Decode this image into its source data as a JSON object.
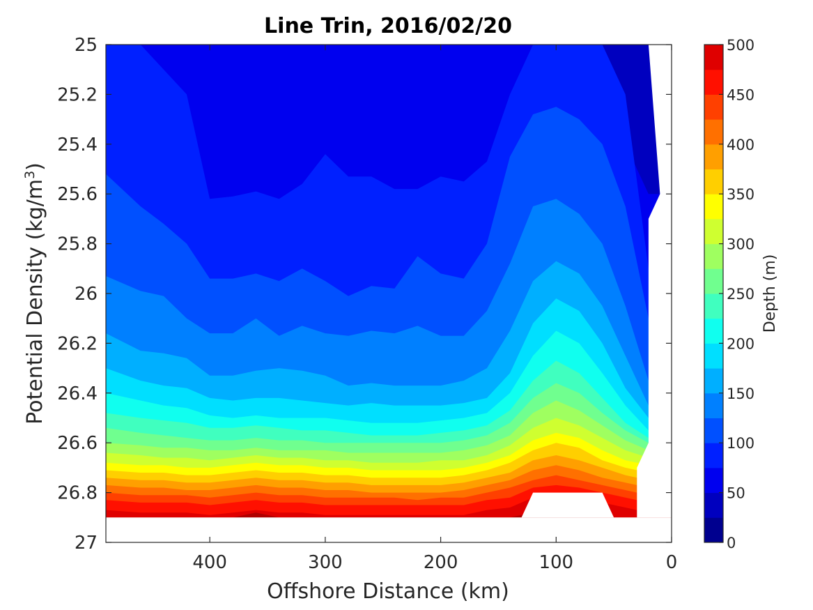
{
  "chart_data": {
    "type": "heatmap",
    "title": "Line Trin, 2016/02/20",
    "xlabel": "Offshore Distance (km)",
    "ylabel": "Potential Density (kg/m",
    "ylabel_sup": "3",
    "ylabel_end": ")",
    "xlim": [
      490,
      0
    ],
    "x_reversed": true,
    "ylim": [
      25,
      27
    ],
    "y_reversed": true,
    "x_ticks": [
      400,
      300,
      200,
      100,
      0
    ],
    "x_tick_labels": [
      "400",
      "300",
      "200",
      "100",
      "0"
    ],
    "y_ticks": [
      25,
      25.2,
      25.4,
      25.6,
      25.8,
      26,
      26.2,
      26.4,
      26.6,
      26.8,
      27
    ],
    "y_tick_labels": [
      "25",
      "25.2",
      "25.4",
      "25.6",
      "25.8",
      "26",
      "26.2",
      "26.4",
      "26.6",
      "26.8",
      "27"
    ],
    "colorbar": {
      "label": "Depth (m)",
      "range": [
        0,
        500
      ],
      "step": 25,
      "ticks": [
        0,
        50,
        100,
        150,
        200,
        250,
        300,
        350,
        400,
        450,
        500
      ],
      "tick_labels": [
        "0",
        "50",
        "100",
        "150",
        "200",
        "250",
        "300",
        "350",
        "400",
        "450",
        "500"
      ],
      "colors": [
        "#00008f",
        "#0000bf",
        "#0000ef",
        "#0020ff",
        "#0050ff",
        "#0080ff",
        "#00afff",
        "#00dfff",
        "#10ffef",
        "#40ffbf",
        "#70ff8f",
        "#9fff60",
        "#cfff30",
        "#ffff00",
        "#ffcf00",
        "#ff9f00",
        "#ff7000",
        "#ff4000",
        "#ff1000",
        "#df0000",
        "#af0000"
      ]
    },
    "x_grid": [
      490,
      460,
      440,
      420,
      400,
      380,
      360,
      340,
      320,
      300,
      280,
      260,
      240,
      220,
      200,
      180,
      160,
      140,
      120,
      100,
      80,
      60,
      40,
      20
    ],
    "depth_isopycnals": [
      {
        "depth": 25,
        "density": [
          25.0,
          25.0,
          25.0,
          25.0,
          25.0,
          25.0,
          25.0,
          25.1,
          25.0,
          25.0,
          25.0,
          25.0,
          25.0,
          25.0,
          25.0,
          25.0,
          25.0,
          25.0,
          25.0,
          25.0,
          25.0,
          25.0,
          25.0,
          25.0
        ]
      },
      {
        "depth": 50,
        "density": [
          25.0,
          25.0,
          25.0,
          25.0,
          25.0,
          25.0,
          25.0,
          25.0,
          25.0,
          25.0,
          25.0,
          25.0,
          25.0,
          25.0,
          25.0,
          25.0,
          25.0,
          25.0,
          25.0,
          25.0,
          25.0,
          25.0,
          25.4,
          25.6
        ]
      },
      {
        "depth": 75,
        "density": [
          25.0,
          25.0,
          25.1,
          25.2,
          25.62,
          25.61,
          25.59,
          25.62,
          25.56,
          25.44,
          25.53,
          25.53,
          25.58,
          25.58,
          25.53,
          25.55,
          25.47,
          25.2,
          25.0,
          25.0,
          25.0,
          25.0,
          25.2,
          25.9
        ]
      },
      {
        "depth": 100,
        "density": [
          25.52,
          25.65,
          25.72,
          25.8,
          25.94,
          25.94,
          25.92,
          25.95,
          25.9,
          25.95,
          26.01,
          25.97,
          25.98,
          25.85,
          25.92,
          25.94,
          25.8,
          25.45,
          25.28,
          25.25,
          25.3,
          25.4,
          25.65,
          26.1
        ]
      },
      {
        "depth": 125,
        "density": [
          25.93,
          25.99,
          26.01,
          26.1,
          26.16,
          26.16,
          26.1,
          26.17,
          26.13,
          26.16,
          26.17,
          26.15,
          26.16,
          26.13,
          26.17,
          26.17,
          26.07,
          25.88,
          25.65,
          25.62,
          25.68,
          25.8,
          26.05,
          26.35
        ]
      },
      {
        "depth": 150,
        "density": [
          26.16,
          26.23,
          26.24,
          26.26,
          26.33,
          26.33,
          26.31,
          26.3,
          26.31,
          26.33,
          26.37,
          26.36,
          26.37,
          26.37,
          26.37,
          26.35,
          26.3,
          26.15,
          25.95,
          25.87,
          25.92,
          26.05,
          26.25,
          26.45
        ]
      },
      {
        "depth": 175,
        "density": [
          26.3,
          26.35,
          26.37,
          26.38,
          26.42,
          26.43,
          26.42,
          26.42,
          26.43,
          26.44,
          26.45,
          26.44,
          26.45,
          26.45,
          26.45,
          26.44,
          26.42,
          26.32,
          26.12,
          26.02,
          26.07,
          26.2,
          26.38,
          26.5
        ]
      },
      {
        "depth": 200,
        "density": [
          26.4,
          26.43,
          26.45,
          26.46,
          26.49,
          26.5,
          26.49,
          26.5,
          26.5,
          26.5,
          26.51,
          26.52,
          26.52,
          26.52,
          26.51,
          26.5,
          26.48,
          26.4,
          26.25,
          26.15,
          26.2,
          26.32,
          26.45,
          26.55
        ]
      },
      {
        "depth": 225,
        "density": [
          26.48,
          26.5,
          26.51,
          26.52,
          26.54,
          26.54,
          26.53,
          26.54,
          26.55,
          26.55,
          26.56,
          26.57,
          26.57,
          26.57,
          26.56,
          26.55,
          26.53,
          26.47,
          26.35,
          26.27,
          26.32,
          26.42,
          26.52,
          26.58
        ]
      },
      {
        "depth": 250,
        "density": [
          26.54,
          26.56,
          26.57,
          26.58,
          26.59,
          26.59,
          26.58,
          26.59,
          26.59,
          26.6,
          26.6,
          26.6,
          26.6,
          26.6,
          26.6,
          26.59,
          26.57,
          26.52,
          26.42,
          26.36,
          26.4,
          26.48,
          26.55,
          26.6
        ]
      },
      {
        "depth": 275,
        "density": [
          26.6,
          26.61,
          26.62,
          26.62,
          26.63,
          26.63,
          26.62,
          26.63,
          26.63,
          26.63,
          26.64,
          26.64,
          26.64,
          26.64,
          26.64,
          26.63,
          26.61,
          26.57,
          26.48,
          26.43,
          26.47,
          26.53,
          26.59,
          26.63
        ]
      },
      {
        "depth": 300,
        "density": [
          26.64,
          26.65,
          26.66,
          26.66,
          26.67,
          26.66,
          26.65,
          26.66,
          26.66,
          26.67,
          26.67,
          26.68,
          26.68,
          26.68,
          26.67,
          26.67,
          26.65,
          26.61,
          26.54,
          26.5,
          26.53,
          26.58,
          26.63,
          26.66
        ]
      },
      {
        "depth": 325,
        "density": [
          26.68,
          26.69,
          26.69,
          26.7,
          26.7,
          26.69,
          26.68,
          26.69,
          26.69,
          26.7,
          26.7,
          26.71,
          26.71,
          26.71,
          26.71,
          26.7,
          26.68,
          26.65,
          26.59,
          26.56,
          26.58,
          26.63,
          26.67,
          26.69
        ]
      },
      {
        "depth": 350,
        "density": [
          26.71,
          26.72,
          26.72,
          26.73,
          26.73,
          26.72,
          26.71,
          26.72,
          26.72,
          26.73,
          26.73,
          26.74,
          26.74,
          26.74,
          26.74,
          26.73,
          26.71,
          26.68,
          26.63,
          26.6,
          26.62,
          26.67,
          26.7,
          26.72
        ]
      },
      {
        "depth": 375,
        "density": [
          26.74,
          26.75,
          26.75,
          26.76,
          26.76,
          26.75,
          26.74,
          26.75,
          26.75,
          26.76,
          26.76,
          26.77,
          26.77,
          26.77,
          26.77,
          26.76,
          26.74,
          26.72,
          26.67,
          26.65,
          26.67,
          26.7,
          26.73,
          26.75
        ]
      },
      {
        "depth": 400,
        "density": [
          26.77,
          26.78,
          26.78,
          26.79,
          26.79,
          26.78,
          26.77,
          26.78,
          26.78,
          26.79,
          26.79,
          26.8,
          26.8,
          26.8,
          26.8,
          26.79,
          26.77,
          26.75,
          26.71,
          26.69,
          26.71,
          26.74,
          26.76,
          26.78
        ]
      },
      {
        "depth": 425,
        "density": [
          26.8,
          26.81,
          26.81,
          26.81,
          26.82,
          26.81,
          26.8,
          26.81,
          26.81,
          26.82,
          26.82,
          26.82,
          26.82,
          26.83,
          26.82,
          26.82,
          26.8,
          26.78,
          26.75,
          26.73,
          26.75,
          26.77,
          26.79,
          26.81
        ]
      },
      {
        "depth": 450,
        "density": [
          26.83,
          26.84,
          26.84,
          26.84,
          26.85,
          26.84,
          26.83,
          26.84,
          26.84,
          26.85,
          26.85,
          26.85,
          26.85,
          26.85,
          26.85,
          26.85,
          26.83,
          26.82,
          26.78,
          26.77,
          26.78,
          26.8,
          26.82,
          26.84
        ]
      },
      {
        "depth": 475,
        "density": [
          26.87,
          26.88,
          26.88,
          26.88,
          26.89,
          26.88,
          26.87,
          26.88,
          26.88,
          26.89,
          26.89,
          26.89,
          26.89,
          26.89,
          26.89,
          26.89,
          26.87,
          26.86,
          26.82,
          26.81,
          26.82,
          26.84,
          26.86,
          26.88
        ]
      },
      {
        "depth": 500,
        "density": [
          26.9,
          26.9,
          26.9,
          26.9,
          26.9,
          26.9,
          26.88,
          26.9,
          26.9,
          26.9,
          26.9,
          26.9,
          26.9,
          26.9,
          26.9,
          26.9,
          26.9,
          26.9,
          26.88,
          26.87,
          26.88,
          26.9,
          26.9,
          26.9
        ]
      }
    ],
    "blank_regions": [
      {
        "name": "region-below-data",
        "points": [
          [
            490,
            26.9
          ],
          [
            0,
            26.9
          ],
          [
            0,
            27
          ],
          [
            490,
            27
          ]
        ]
      },
      {
        "name": "coastal-no-data",
        "points": [
          [
            20,
            25.0
          ],
          [
            0,
            25.0
          ],
          [
            0,
            26.9
          ],
          [
            30,
            26.9
          ],
          [
            30,
            26.7
          ],
          [
            20,
            26.6
          ],
          [
            20,
            25.7
          ],
          [
            10,
            25.6
          ]
        ]
      },
      {
        "name": "seamount-no-data",
        "points": [
          [
            130,
            26.9
          ],
          [
            120,
            26.8
          ],
          [
            60,
            26.8
          ],
          [
            50,
            26.9
          ]
        ]
      }
    ]
  }
}
